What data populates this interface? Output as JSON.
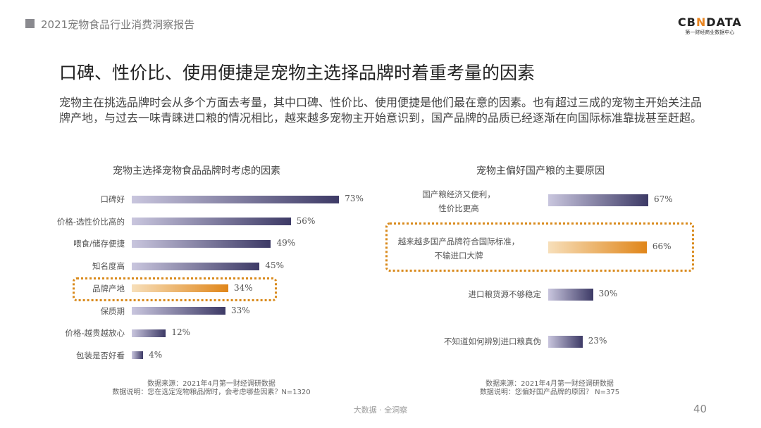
{
  "header": {
    "report_title": "2021宠物食品行业消费洞察报告",
    "logo_text": "CBNDATA",
    "logo_sub": "第一财经商业数据中心"
  },
  "title": "口碑、性价比、使用便捷是宠物主选择品牌时着重考量的因素",
  "description": "宠物主在挑选品牌时会从多个方面去考量，其中口碑、性价比、使用便捷是他们最在意的因素。也有超过三成的宠物主开始关注品牌产地，与过去一味青睐进口粮的情况相比，越来越多宠物主开始意识到，国产品牌的品质已经逐渐在向国际标准靠拢甚至赶超。",
  "colors": {
    "bar": "#3d3a66",
    "bar_light": "#c9c6de",
    "highlight": "#e0861a",
    "highlight_light": "#f7dfba"
  },
  "chart_data": [
    {
      "type": "bar",
      "orientation": "horizontal",
      "title": "宠物主选择宠物食品品牌时考虑的因素",
      "categories": [
        "口碑好",
        "价格-选性价比高的",
        "喂食/储存便捷",
        "知名度高",
        "品牌产地",
        "保质期",
        "价格-越贵越放心",
        "包装是否好看"
      ],
      "values": [
        73,
        56,
        49,
        45,
        34,
        33,
        12,
        4
      ],
      "unit": "%",
      "highlighted": "品牌产地",
      "source": "数据来源：2021年4月第一财经调研数据",
      "note": "数据说明：您在选定宠物粮品牌时，会考虑哪些因素？N=1320"
    },
    {
      "type": "bar",
      "orientation": "horizontal",
      "title": "宠物主偏好国产粮的主要原因",
      "categories": [
        "国产粮经济又便利，性价比更高",
        "越来越多国产品牌符合国际标准，不输进口大牌",
        "进口粮货源不够稳定",
        "不知道如何辨别进口粮真伪"
      ],
      "values": [
        67,
        66,
        30,
        23
      ],
      "unit": "%",
      "highlighted": "越来越多国产品牌符合国际标准，不输进口大牌",
      "source": "数据来源：2021年4月第一财经调研数据",
      "note": "数据说明：您偏好国产品牌的原因？ N=375"
    }
  ],
  "footer": {
    "slogan": "大数据 · 全洞察",
    "page": "40"
  }
}
